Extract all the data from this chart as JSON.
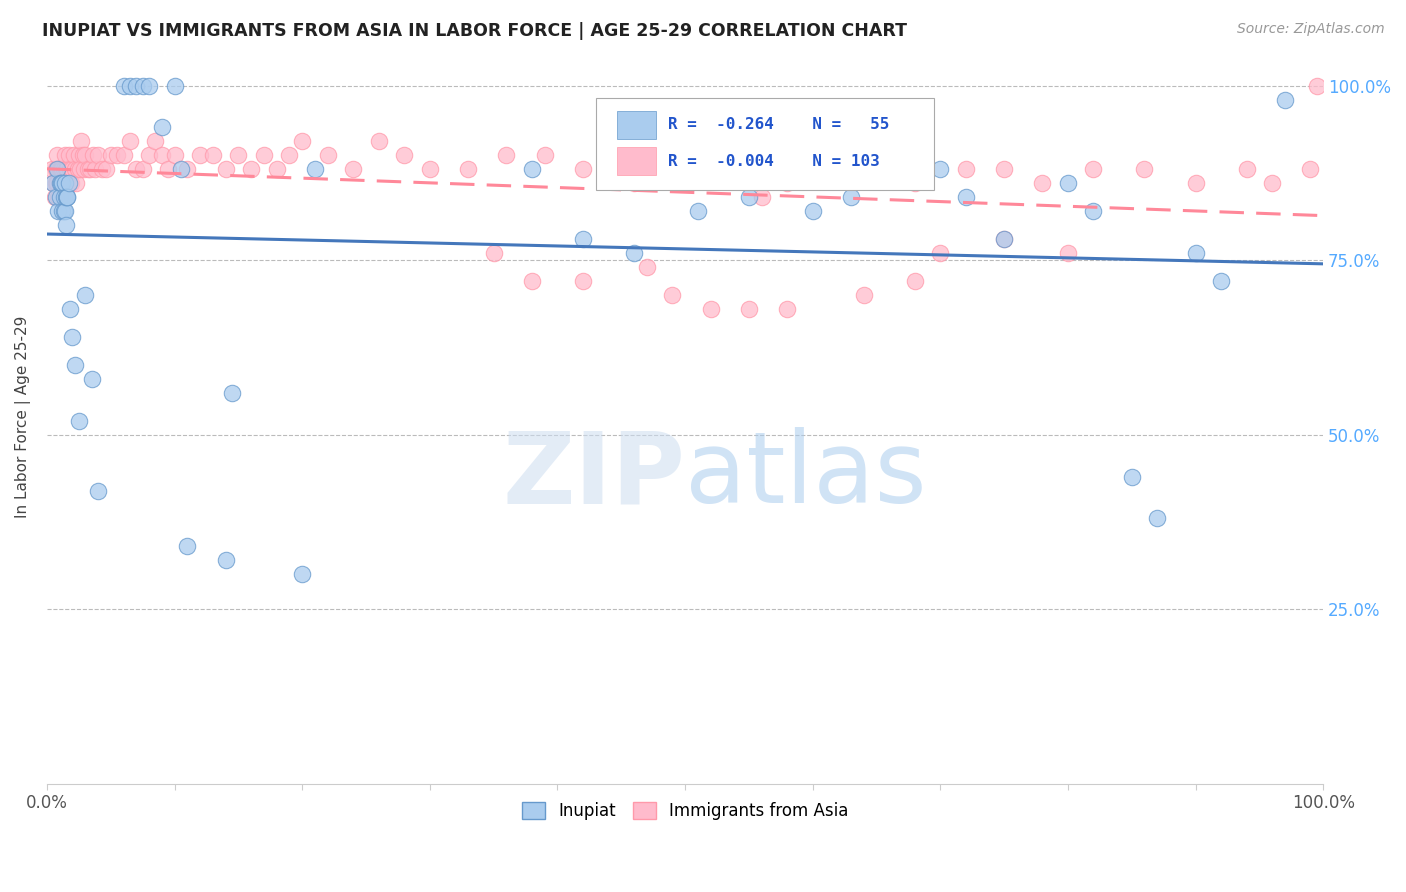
{
  "title": "INUPIAT VS IMMIGRANTS FROM ASIA IN LABOR FORCE | AGE 25-29 CORRELATION CHART",
  "source": "Source: ZipAtlas.com",
  "ylabel": "In Labor Force | Age 25-29",
  "xlim": [
    0,
    1
  ],
  "ylim": [
    0,
    1.05
  ],
  "legend_labels": [
    "Inupiat",
    "Immigrants from Asia"
  ],
  "blue_fill": "#AACCEE",
  "blue_edge": "#6699CC",
  "blue_line": "#4477BB",
  "pink_fill": "#FFBBCC",
  "pink_edge": "#FF99AA",
  "pink_line": "#FF8899",
  "watermark_color": "#DDEEFF",
  "background_color": "#ffffff",
  "grid_color": "#bbbbbb",
  "right_axis_color": "#55AAFF",
  "title_color": "#222222",
  "source_color": "#999999",
  "inupiat_x": [
    0.005,
    0.007,
    0.008,
    0.009,
    0.01,
    0.01,
    0.011,
    0.012,
    0.012,
    0.013,
    0.013,
    0.014,
    0.014,
    0.015,
    0.015,
    0.016,
    0.016,
    0.017,
    0.018,
    0.02,
    0.022,
    0.025,
    0.03,
    0.035,
    0.04,
    0.06,
    0.065,
    0.07,
    0.075,
    0.08,
    0.09,
    0.1,
    0.105,
    0.11,
    0.14,
    0.145,
    0.2,
    0.21,
    0.38,
    0.42,
    0.46,
    0.51,
    0.55,
    0.6,
    0.63,
    0.7,
    0.72,
    0.75,
    0.8,
    0.82,
    0.85,
    0.87,
    0.9,
    0.92,
    0.97
  ],
  "inupiat_y": [
    0.86,
    0.84,
    0.88,
    0.82,
    0.86,
    0.84,
    0.86,
    0.86,
    0.82,
    0.82,
    0.84,
    0.86,
    0.82,
    0.84,
    0.8,
    0.84,
    0.84,
    0.86,
    0.68,
    0.64,
    0.6,
    0.52,
    0.7,
    0.58,
    0.42,
    1.0,
    1.0,
    1.0,
    1.0,
    1.0,
    0.94,
    1.0,
    0.88,
    0.34,
    0.32,
    0.56,
    0.3,
    0.88,
    0.88,
    0.78,
    0.76,
    0.82,
    0.84,
    0.82,
    0.84,
    0.88,
    0.84,
    0.78,
    0.86,
    0.82,
    0.44,
    0.38,
    0.76,
    0.72,
    0.98
  ],
  "asia_x": [
    0.004,
    0.005,
    0.006,
    0.007,
    0.007,
    0.008,
    0.008,
    0.009,
    0.009,
    0.01,
    0.01,
    0.011,
    0.011,
    0.012,
    0.012,
    0.013,
    0.013,
    0.014,
    0.014,
    0.015,
    0.016,
    0.017,
    0.018,
    0.019,
    0.02,
    0.021,
    0.022,
    0.023,
    0.024,
    0.025,
    0.026,
    0.027,
    0.028,
    0.029,
    0.03,
    0.032,
    0.034,
    0.036,
    0.038,
    0.04,
    0.043,
    0.046,
    0.05,
    0.055,
    0.06,
    0.065,
    0.07,
    0.075,
    0.08,
    0.085,
    0.09,
    0.095,
    0.1,
    0.11,
    0.12,
    0.13,
    0.14,
    0.15,
    0.16,
    0.17,
    0.18,
    0.19,
    0.2,
    0.22,
    0.24,
    0.26,
    0.28,
    0.3,
    0.33,
    0.36,
    0.39,
    0.42,
    0.46,
    0.5,
    0.54,
    0.58,
    0.56,
    0.6,
    0.64,
    0.68,
    0.72,
    0.75,
    0.78,
    0.82,
    0.86,
    0.9,
    0.94,
    0.96,
    0.99,
    0.995,
    0.35,
    0.38,
    0.42,
    0.47,
    0.49,
    0.52,
    0.55,
    0.58,
    0.64,
    0.68,
    0.7,
    0.75,
    0.8
  ],
  "asia_y": [
    0.88,
    0.86,
    0.84,
    0.88,
    0.86,
    0.9,
    0.86,
    0.88,
    0.84,
    0.88,
    0.86,
    0.88,
    0.86,
    0.88,
    0.84,
    0.88,
    0.86,
    0.9,
    0.86,
    0.88,
    0.88,
    0.9,
    0.88,
    0.86,
    0.88,
    0.9,
    0.88,
    0.86,
    0.88,
    0.9,
    0.88,
    0.92,
    0.9,
    0.88,
    0.9,
    0.88,
    0.88,
    0.9,
    0.88,
    0.9,
    0.88,
    0.88,
    0.9,
    0.9,
    0.9,
    0.92,
    0.88,
    0.88,
    0.9,
    0.92,
    0.9,
    0.88,
    0.9,
    0.88,
    0.9,
    0.9,
    0.88,
    0.9,
    0.88,
    0.9,
    0.88,
    0.9,
    0.92,
    0.9,
    0.88,
    0.92,
    0.9,
    0.88,
    0.88,
    0.9,
    0.9,
    0.88,
    0.86,
    0.88,
    0.88,
    0.86,
    0.84,
    0.88,
    0.88,
    0.86,
    0.88,
    0.88,
    0.86,
    0.88,
    0.88,
    0.86,
    0.88,
    0.86,
    0.88,
    1.0,
    0.76,
    0.72,
    0.72,
    0.74,
    0.7,
    0.68,
    0.68,
    0.68,
    0.7,
    0.72,
    0.76,
    0.78,
    0.76
  ]
}
